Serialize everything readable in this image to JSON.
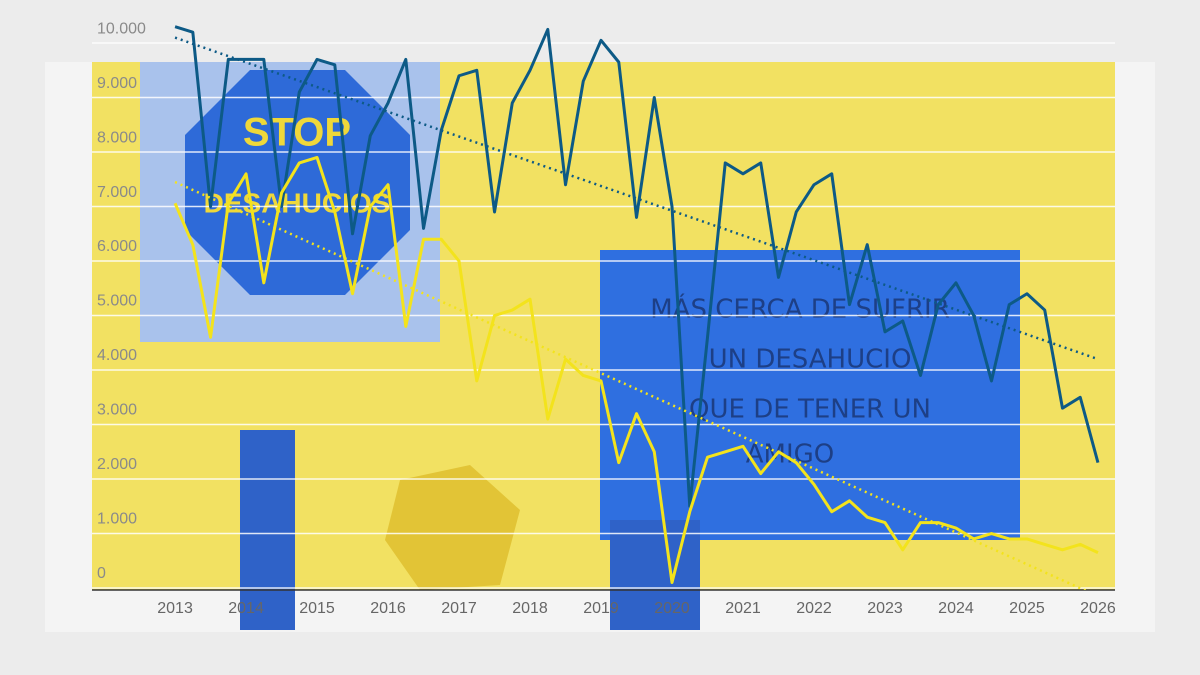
{
  "chart_data": {
    "type": "line",
    "annotations": [
      "STOP",
      "DESAHUCIOS",
      "MÁS CERCA DE SUFRIR",
      "UN DESAHUCIO",
      "QUE DE TENER UN",
      "AMIGO"
    ],
    "x": [
      2013,
      2013.25,
      2013.5,
      2013.75,
      2014,
      2014.25,
      2014.5,
      2014.75,
      2015,
      2015.25,
      2015.5,
      2015.75,
      2016,
      2016.25,
      2016.5,
      2016.75,
      2017,
      2017.25,
      2017.5,
      2017.75,
      2018,
      2018.25,
      2018.5,
      2018.75,
      2019,
      2019.25,
      2019.5,
      2019.75,
      2020,
      2020.25,
      2020.5,
      2020.75,
      2021,
      2021.25,
      2021.5,
      2021.75,
      2022,
      2022.25,
      2022.5,
      2022.75,
      2023,
      2023.25,
      2023.5,
      2023.75,
      2024,
      2024.25,
      2024.5,
      2024.75,
      2025,
      2025.25,
      2025.5,
      2025.75,
      2026
    ],
    "series": [
      {
        "color": "#0d5a86",
        "values": [
          10300,
          10200,
          7000,
          9700,
          9700,
          9700,
          7000,
          9100,
          9700,
          9600,
          6500,
          8300,
          8900,
          9700,
          6600,
          8400,
          9400,
          9500,
          6900,
          8900,
          9500,
          10250,
          7400,
          9300,
          10050,
          9650,
          6800,
          9000,
          7000,
          1500,
          4600,
          7800,
          7600,
          7800,
          5700,
          6900,
          7400,
          7600,
          5200,
          6300,
          4700,
          4900,
          3900,
          5200,
          5600,
          5000,
          3800,
          5200,
          5400,
          5100,
          3300,
          3500,
          2300
        ],
        "trend": [
          10100,
          4200
        ]
      },
      {
        "color": "#f3e31c",
        "values": [
          7060,
          6300,
          4600,
          7060,
          7600,
          5600,
          7250,
          7800,
          7900,
          6900,
          5400,
          7000,
          7400,
          4800,
          6400,
          6400,
          6000,
          3800,
          5000,
          5100,
          5300,
          3100,
          4200,
          3900,
          3800,
          2300,
          3200,
          2500,
          100,
          1400,
          2400,
          2500,
          2600,
          2100,
          2500,
          2300,
          1900,
          1400,
          1600,
          1300,
          1200,
          700,
          1200,
          1200,
          1100,
          900,
          1000,
          900,
          900,
          800,
          700,
          800,
          650
        ],
        "trend": [
          7450,
          -150
        ]
      }
    ],
    "xlim": [
      2011.83,
      2026.24
    ],
    "xticks": [
      2013,
      2014,
      2015,
      2016,
      2017,
      2018,
      2019,
      2020,
      2021,
      2022,
      2023,
      2024,
      2025,
      2026
    ],
    "ylim": [
      0,
      10790
    ],
    "yticks": [
      0,
      {
        "value": 1000,
        "label": "1.000"
      },
      {
        "value": 2000,
        "label": "2.000"
      },
      {
        "value": 3000,
        "label": "3.000"
      },
      {
        "value": 4000,
        "label": "4.000"
      },
      {
        "value": 5000,
        "label": "5.000"
      },
      {
        "value": 6000,
        "label": "6.000"
      },
      {
        "value": 7000,
        "label": "7.000"
      },
      {
        "value": 8000,
        "label": "8.000"
      },
      {
        "value": 9000,
        "label": "9.000"
      },
      {
        "value": 10000,
        "label": "10.000"
      }
    ],
    "grid": true
  }
}
